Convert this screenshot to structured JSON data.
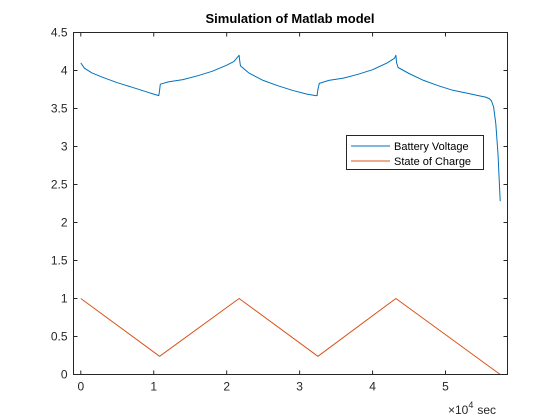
{
  "chart_data": {
    "type": "line",
    "title": "Simulation of Matlab model",
    "xlabel": "",
    "ylabel": "",
    "x_exponent_base": "×10",
    "x_exponent_power": "4",
    "x_unit": "sec",
    "xlim": [
      -0.1,
      5.85
    ],
    "ylim": [
      0,
      4.5
    ],
    "xticks": [
      0,
      1,
      2,
      3,
      4,
      5
    ],
    "xtick_labels": [
      "0",
      "1",
      "2",
      "3",
      "4",
      "5"
    ],
    "yticks": [
      0,
      0.5,
      1,
      1.5,
      2,
      2.5,
      3,
      3.5,
      4,
      4.5
    ],
    "ytick_labels": [
      "0",
      "0.5",
      "1",
      "1.5",
      "2",
      "2.5",
      "3",
      "3.5",
      "4",
      "4.5"
    ],
    "grid": false,
    "legend_position": "right",
    "series": [
      {
        "name": "Battery Voltage",
        "color": "#0072BD",
        "x": [
          0,
          0.05,
          0.15,
          0.3,
          0.5,
          0.7,
          0.9,
          1.0,
          1.07,
          1.08,
          1.09,
          1.2,
          1.4,
          1.6,
          1.8,
          2.0,
          2.1,
          2.17,
          2.18,
          2.19,
          2.3,
          2.5,
          2.7,
          2.9,
          3.1,
          3.22,
          3.24,
          3.25,
          3.27,
          3.4,
          3.6,
          3.8,
          4.0,
          4.2,
          4.3,
          4.32,
          4.33,
          4.35,
          4.5,
          4.7,
          4.9,
          5.1,
          5.3,
          5.45,
          5.55,
          5.6,
          5.63,
          5.66,
          5.69,
          5.72,
          5.75
        ],
        "y": [
          4.1,
          4.03,
          3.97,
          3.91,
          3.84,
          3.78,
          3.72,
          3.69,
          3.67,
          3.74,
          3.82,
          3.85,
          3.88,
          3.93,
          3.99,
          4.07,
          4.12,
          4.2,
          4.12,
          4.06,
          3.97,
          3.87,
          3.8,
          3.74,
          3.69,
          3.67,
          3.67,
          3.75,
          3.83,
          3.87,
          3.9,
          3.95,
          4.01,
          4.1,
          4.16,
          4.2,
          4.1,
          4.04,
          3.96,
          3.87,
          3.8,
          3.74,
          3.7,
          3.67,
          3.65,
          3.63,
          3.6,
          3.52,
          3.3,
          2.9,
          2.28
        ]
      },
      {
        "name": "State of Charge",
        "color": "#D95319",
        "x": [
          0,
          1.08,
          2.17,
          3.25,
          4.32,
          5.75
        ],
        "y": [
          1.0,
          0.24,
          1.0,
          0.24,
          1.0,
          0.0
        ]
      }
    ]
  }
}
